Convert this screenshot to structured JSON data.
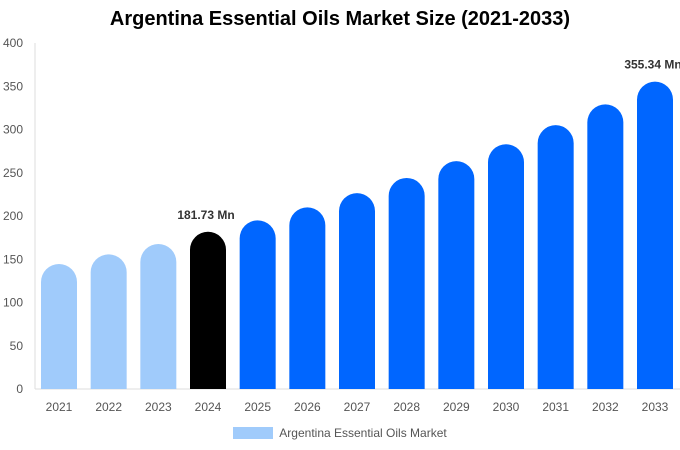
{
  "chart_data": {
    "type": "bar",
    "title": "Argentina Essential Oils Market Size (2021-2033)",
    "categories": [
      "2021",
      "2022",
      "2023",
      "2024",
      "2025",
      "2026",
      "2027",
      "2028",
      "2029",
      "2030",
      "2031",
      "2032",
      "2033"
    ],
    "series": [
      {
        "name": "Argentina Essential Oils Market",
        "values": [
          144.5,
          155.7,
          167.6,
          181.73,
          195,
          210,
          226.5,
          244,
          263.5,
          283,
          305,
          329,
          355.34
        ]
      }
    ],
    "data_labels": [
      {
        "category": "2024",
        "text": "181.73 Mn"
      },
      {
        "category": "2033",
        "text": "355.34 Mn"
      }
    ],
    "xlabel": "",
    "ylabel": "",
    "ylim": [
      0,
      400
    ],
    "yticks": [
      0,
      50,
      100,
      150,
      200,
      250,
      300,
      350,
      400
    ],
    "grid": false,
    "legend": "bottom",
    "colors": {
      "historical": "#a0cbfb",
      "base_year": "#000000",
      "forecast": "#0066ff"
    },
    "color_by_category": [
      "historical",
      "historical",
      "historical",
      "base_year",
      "forecast",
      "forecast",
      "forecast",
      "forecast",
      "forecast",
      "forecast",
      "forecast",
      "forecast",
      "forecast"
    ]
  }
}
